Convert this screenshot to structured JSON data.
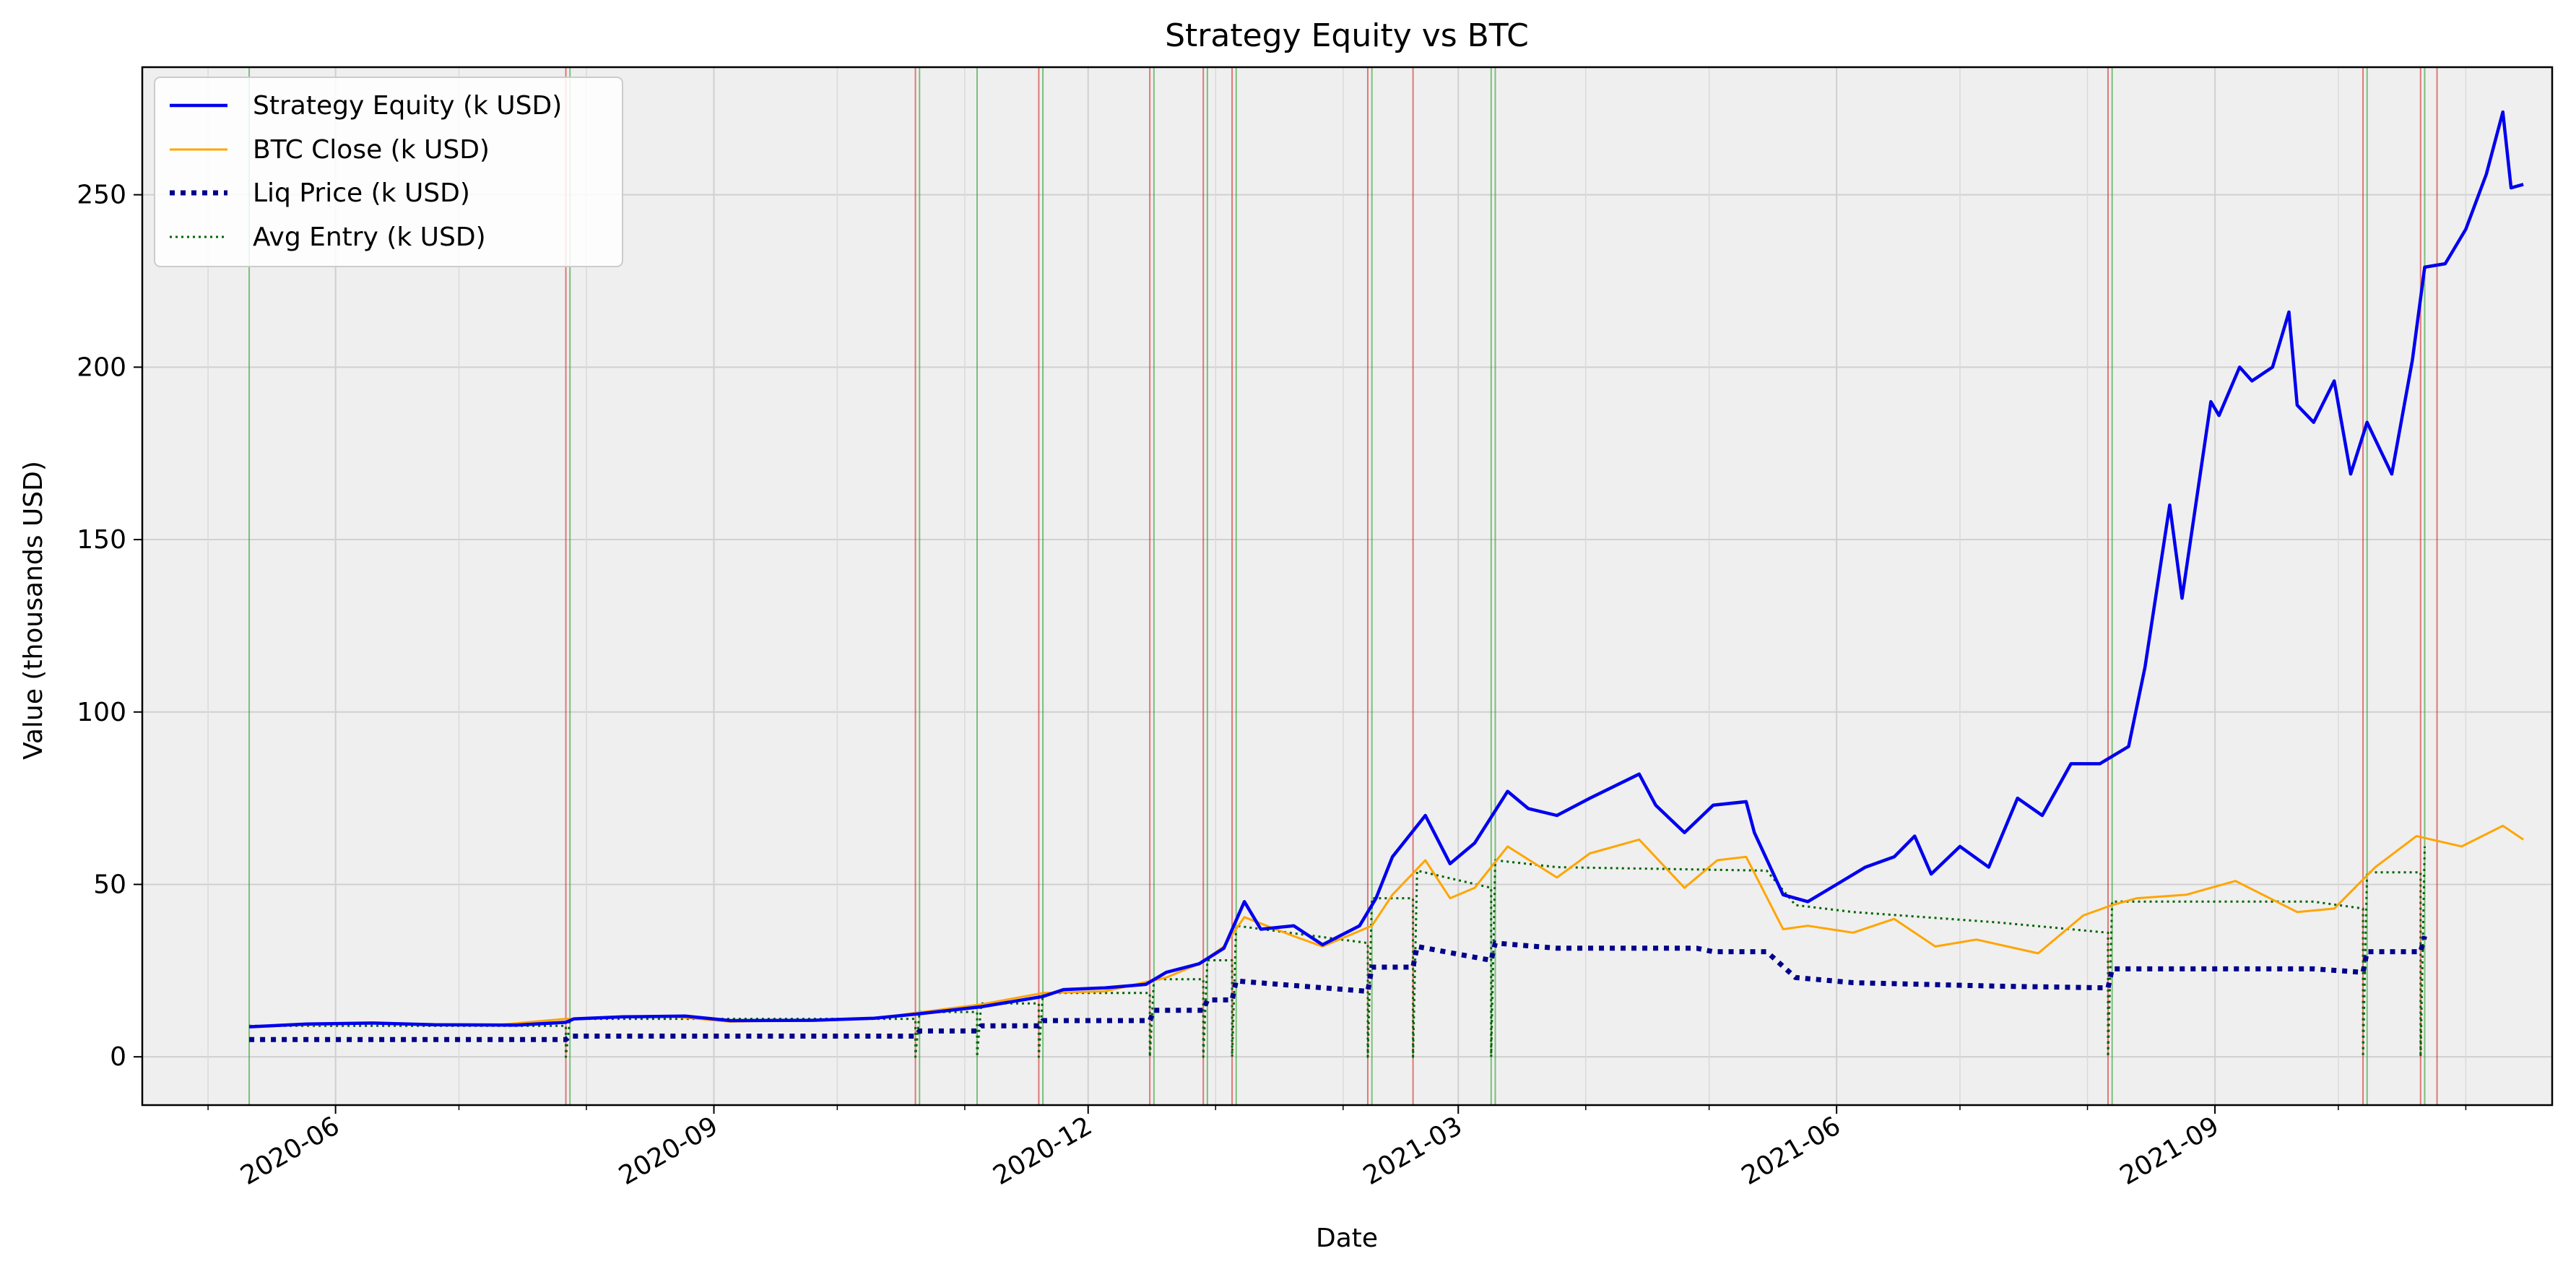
{
  "chart_data": {
    "type": "line",
    "title": "Strategy Equity vs BTC",
    "xlabel": "Date",
    "ylabel": "Value (thousands USD)",
    "x_range": [
      "2020-04-15",
      "2021-11-22"
    ],
    "ylim": [
      -14,
      287
    ],
    "grid": true,
    "legend_position": "top-left",
    "x_ticks": [
      {
        "date": "2020-06-01",
        "label": "2020-06"
      },
      {
        "date": "2020-09-01",
        "label": "2020-09"
      },
      {
        "date": "2020-12-01",
        "label": "2020-12"
      },
      {
        "date": "2021-03-01",
        "label": "2021-03"
      },
      {
        "date": "2021-06-01",
        "label": "2021-06"
      },
      {
        "date": "2021-09-01",
        "label": "2021-09"
      }
    ],
    "x_minor_ticks": [
      "2020-05-01",
      "2020-07-01",
      "2020-08-01",
      "2020-10-01",
      "2020-11-01",
      "2021-01-01",
      "2021-02-01",
      "2021-04-01",
      "2021-05-01",
      "2021-07-01",
      "2021-08-01",
      "2021-10-01",
      "2021-11-01"
    ],
    "y_ticks": [
      0,
      50,
      100,
      150,
      200,
      250
    ],
    "series": [
      {
        "name": "Strategy Equity (k USD)",
        "color": "#0000ee",
        "style": "solid",
        "width": 4.5,
        "points": [
          [
            "2020-05-11",
            8.7
          ],
          [
            "2020-05-25",
            9.5
          ],
          [
            "2020-06-10",
            9.8
          ],
          [
            "2020-06-25",
            9.3
          ],
          [
            "2020-07-15",
            9.2
          ],
          [
            "2020-07-27",
            10.0
          ],
          [
            "2020-07-29",
            11.0
          ],
          [
            "2020-08-10",
            11.6
          ],
          [
            "2020-08-25",
            11.8
          ],
          [
            "2020-09-05",
            10.5
          ],
          [
            "2020-09-25",
            10.6
          ],
          [
            "2020-10-10",
            11.2
          ],
          [
            "2020-10-21",
            12.5
          ],
          [
            "2020-11-05",
            14.5
          ],
          [
            "2020-11-20",
            17.5
          ],
          [
            "2020-11-25",
            19.5
          ],
          [
            "2020-12-05",
            20.0
          ],
          [
            "2020-12-15",
            21.0
          ],
          [
            "2020-12-20",
            24.5
          ],
          [
            "2020-12-28",
            27.0
          ],
          [
            "2021-01-03",
            31.5
          ],
          [
            "2021-01-08",
            45.0
          ],
          [
            "2021-01-12",
            37.0
          ],
          [
            "2021-01-20",
            38.0
          ],
          [
            "2021-01-27",
            32.5
          ],
          [
            "2021-02-05",
            38.0
          ],
          [
            "2021-02-09",
            46.0
          ],
          [
            "2021-02-13",
            58.0
          ],
          [
            "2021-02-21",
            70.0
          ],
          [
            "2021-02-27",
            56.0
          ],
          [
            "2021-03-05",
            62.0
          ],
          [
            "2021-03-13",
            77.0
          ],
          [
            "2021-03-18",
            72.0
          ],
          [
            "2021-03-25",
            70.0
          ],
          [
            "2021-04-02",
            75.0
          ],
          [
            "2021-04-14",
            82.0
          ],
          [
            "2021-04-18",
            73.0
          ],
          [
            "2021-04-25",
            65.0
          ],
          [
            "2021-05-02",
            73.0
          ],
          [
            "2021-05-10",
            74.0
          ],
          [
            "2021-05-12",
            65.0
          ],
          [
            "2021-05-19",
            47.0
          ],
          [
            "2021-05-25",
            45.0
          ],
          [
            "2021-06-01",
            50.0
          ],
          [
            "2021-06-08",
            55.0
          ],
          [
            "2021-06-15",
            58.0
          ],
          [
            "2021-06-20",
            64.0
          ],
          [
            "2021-06-24",
            53.0
          ],
          [
            "2021-07-01",
            61.0
          ],
          [
            "2021-07-08",
            55.0
          ],
          [
            "2021-07-15",
            75.0
          ],
          [
            "2021-07-21",
            70.0
          ],
          [
            "2021-07-28",
            85.0
          ],
          [
            "2021-08-04",
            85.0
          ],
          [
            "2021-08-11",
            90.0
          ],
          [
            "2021-08-15",
            113.0
          ],
          [
            "2021-08-21",
            160.0
          ],
          [
            "2021-08-24",
            133.0
          ],
          [
            "2021-08-31",
            190.0
          ],
          [
            "2021-09-02",
            186.0
          ],
          [
            "2021-09-07",
            200.0
          ],
          [
            "2021-09-10",
            196.0
          ],
          [
            "2021-09-15",
            200.0
          ],
          [
            "2021-09-19",
            216.0
          ],
          [
            "2021-09-21",
            189.0
          ],
          [
            "2021-09-25",
            184.0
          ],
          [
            "2021-09-30",
            196.0
          ],
          [
            "2021-10-04",
            169.0
          ],
          [
            "2021-10-08",
            184.0
          ],
          [
            "2021-10-14",
            169.0
          ],
          [
            "2021-10-19",
            202.0
          ],
          [
            "2021-10-22",
            229.0
          ],
          [
            "2021-10-27",
            230.0
          ],
          [
            "2021-11-01",
            240.0
          ],
          [
            "2021-11-06",
            256.0
          ],
          [
            "2021-11-10",
            274.0
          ],
          [
            "2021-11-12",
            252.0
          ],
          [
            "2021-11-15",
            253.0
          ]
        ]
      },
      {
        "name": "BTC Close (k USD)",
        "color": "#ffa500",
        "style": "solid",
        "width": 3,
        "points": [
          [
            "2020-05-11",
            8.9
          ],
          [
            "2020-06-10",
            9.7
          ],
          [
            "2020-07-10",
            9.2
          ],
          [
            "2020-07-27",
            11.0
          ],
          [
            "2020-08-20",
            11.9
          ],
          [
            "2020-09-05",
            10.2
          ],
          [
            "2020-10-10",
            11.1
          ],
          [
            "2020-10-21",
            12.9
          ],
          [
            "2020-11-05",
            15.2
          ],
          [
            "2020-11-20",
            18.5
          ],
          [
            "2020-12-05",
            19.0
          ],
          [
            "2020-12-20",
            23.0
          ],
          [
            "2020-12-28",
            27.0
          ],
          [
            "2021-01-03",
            32.0
          ],
          [
            "2021-01-08",
            40.5
          ],
          [
            "2021-01-20",
            35.0
          ],
          [
            "2021-01-27",
            32.0
          ],
          [
            "2021-02-08",
            38.0
          ],
          [
            "2021-02-13",
            47.0
          ],
          [
            "2021-02-21",
            57.0
          ],
          [
            "2021-02-27",
            46.0
          ],
          [
            "2021-03-05",
            49.0
          ],
          [
            "2021-03-13",
            61.0
          ],
          [
            "2021-03-25",
            52.0
          ],
          [
            "2021-04-02",
            59.0
          ],
          [
            "2021-04-14",
            63.0
          ],
          [
            "2021-04-25",
            49.0
          ],
          [
            "2021-05-03",
            57.0
          ],
          [
            "2021-05-10",
            58.0
          ],
          [
            "2021-05-19",
            37.0
          ],
          [
            "2021-05-25",
            38.0
          ],
          [
            "2021-06-05",
            36.0
          ],
          [
            "2021-06-15",
            40.0
          ],
          [
            "2021-06-25",
            32.0
          ],
          [
            "2021-07-05",
            34.0
          ],
          [
            "2021-07-20",
            30.0
          ],
          [
            "2021-07-31",
            41.0
          ],
          [
            "2021-08-07",
            44.0
          ],
          [
            "2021-08-13",
            46.0
          ],
          [
            "2021-08-25",
            47.0
          ],
          [
            "2021-09-06",
            51.0
          ],
          [
            "2021-09-21",
            42.0
          ],
          [
            "2021-09-30",
            43.0
          ],
          [
            "2021-10-10",
            55.0
          ],
          [
            "2021-10-20",
            64.0
          ],
          [
            "2021-10-31",
            61.0
          ],
          [
            "2021-11-10",
            67.0
          ],
          [
            "2021-11-15",
            63.0
          ]
        ]
      },
      {
        "name": "Liq Price (k USD)",
        "color": "#00008b",
        "style": "dotted-bold",
        "width": 7,
        "points": [
          [
            "2020-05-11",
            5.0
          ],
          [
            "2020-07-27",
            5.0
          ],
          [
            "2020-07-28",
            6.0
          ],
          [
            "2020-10-20",
            6.0
          ],
          [
            "2020-10-21",
            7.5
          ],
          [
            "2020-11-04",
            7.5
          ],
          [
            "2020-11-05",
            9.0
          ],
          [
            "2020-11-19",
            9.0
          ],
          [
            "2020-11-20",
            10.5
          ],
          [
            "2020-12-16",
            10.5
          ],
          [
            "2020-12-17",
            13.5
          ],
          [
            "2020-12-29",
            13.5
          ],
          [
            "2020-12-30",
            16.5
          ],
          [
            "2021-01-05",
            16.5
          ],
          [
            "2021-01-06",
            22.0
          ],
          [
            "2021-02-07",
            19.0
          ],
          [
            "2021-02-08",
            26.0
          ],
          [
            "2021-02-18",
            26.0
          ],
          [
            "2021-02-19",
            32.0
          ],
          [
            "2021-03-09",
            28.0
          ],
          [
            "2021-03-10",
            33.0
          ],
          [
            "2021-03-25",
            31.5
          ],
          [
            "2021-04-28",
            31.5
          ],
          [
            "2021-05-02",
            30.5
          ],
          [
            "2021-05-15",
            30.5
          ],
          [
            "2021-05-22",
            23.0
          ],
          [
            "2021-06-05",
            21.5
          ],
          [
            "2021-07-10",
            20.5
          ],
          [
            "2021-08-06",
            20.0
          ],
          [
            "2021-08-07",
            25.5
          ],
          [
            "2021-09-25",
            25.5
          ],
          [
            "2021-10-07",
            24.5
          ],
          [
            "2021-10-08",
            30.5
          ],
          [
            "2021-10-21",
            30.5
          ],
          [
            "2021-10-22",
            35.0
          ]
        ]
      },
      {
        "name": "Avg Entry (k USD)",
        "color": "#006400",
        "style": "dotted-thin",
        "width": 3,
        "points": [
          [
            "2020-05-11",
            9.0
          ],
          [
            "2020-07-27",
            9.0
          ],
          [
            "2020-07-27",
            0.0
          ],
          [
            "2020-07-28",
            11.0
          ],
          [
            "2020-10-20",
            11.0
          ],
          [
            "2020-10-20",
            0.0
          ],
          [
            "2020-10-21",
            13.0
          ],
          [
            "2020-11-04",
            13.0
          ],
          [
            "2020-11-04",
            0.0
          ],
          [
            "2020-11-05",
            15.5
          ],
          [
            "2020-11-19",
            15.5
          ],
          [
            "2020-11-19",
            0.0
          ],
          [
            "2020-11-20",
            18.5
          ],
          [
            "2020-12-16",
            18.5
          ],
          [
            "2020-12-16",
            0.0
          ],
          [
            "2020-12-17",
            22.5
          ],
          [
            "2020-12-29",
            22.5
          ],
          [
            "2020-12-29",
            0.0
          ],
          [
            "2020-12-30",
            28.0
          ],
          [
            "2021-01-05",
            28.0
          ],
          [
            "2021-01-05",
            0.0
          ],
          [
            "2021-01-06",
            38.0
          ],
          [
            "2021-02-07",
            33.0
          ],
          [
            "2021-02-07",
            0.0
          ],
          [
            "2021-02-08",
            46.0
          ],
          [
            "2021-02-18",
            46.0
          ],
          [
            "2021-02-18",
            0.0
          ],
          [
            "2021-02-19",
            54.0
          ],
          [
            "2021-03-09",
            49.0
          ],
          [
            "2021-03-09",
            0.0
          ],
          [
            "2021-03-10",
            57.0
          ],
          [
            "2021-03-25",
            55.0
          ],
          [
            "2021-05-15",
            54.0
          ],
          [
            "2021-05-22",
            44.0
          ],
          [
            "2021-06-05",
            42.0
          ],
          [
            "2021-07-10",
            39.0
          ],
          [
            "2021-08-06",
            36.0
          ],
          [
            "2021-08-06",
            0.0
          ],
          [
            "2021-08-07",
            45.0
          ],
          [
            "2021-09-25",
            45.0
          ],
          [
            "2021-10-07",
            43.0
          ],
          [
            "2021-10-07",
            0.0
          ],
          [
            "2021-10-08",
            53.5
          ],
          [
            "2021-10-21",
            53.5
          ],
          [
            "2021-10-21",
            0.0
          ],
          [
            "2021-10-22",
            61.0
          ]
        ]
      }
    ],
    "event_lines": [
      {
        "date": "2020-05-11",
        "color": "#2ca02c"
      },
      {
        "date": "2020-07-27",
        "color": "#d62728"
      },
      {
        "date": "2020-07-28",
        "color": "#2ca02c"
      },
      {
        "date": "2020-10-20",
        "color": "#d62728"
      },
      {
        "date": "2020-10-21",
        "color": "#2ca02c"
      },
      {
        "date": "2020-11-04",
        "color": "#2ca02c"
      },
      {
        "date": "2020-11-19",
        "color": "#d62728"
      },
      {
        "date": "2020-11-20",
        "color": "#2ca02c"
      },
      {
        "date": "2020-12-16",
        "color": "#d62728"
      },
      {
        "date": "2020-12-17",
        "color": "#2ca02c"
      },
      {
        "date": "2020-12-29",
        "color": "#d62728"
      },
      {
        "date": "2020-12-30",
        "color": "#2ca02c"
      },
      {
        "date": "2021-01-05",
        "color": "#d62728"
      },
      {
        "date": "2021-01-06",
        "color": "#2ca02c"
      },
      {
        "date": "2021-02-07",
        "color": "#d62728"
      },
      {
        "date": "2021-02-08",
        "color": "#2ca02c"
      },
      {
        "date": "2021-02-18",
        "color": "#d62728"
      },
      {
        "date": "2021-03-09",
        "color": "#2ca02c"
      },
      {
        "date": "2021-03-10",
        "color": "#2ca02c"
      },
      {
        "date": "2021-08-06",
        "color": "#d62728"
      },
      {
        "date": "2021-08-07",
        "color": "#2ca02c"
      },
      {
        "date": "2021-10-07",
        "color": "#d62728"
      },
      {
        "date": "2021-10-08",
        "color": "#2ca02c"
      },
      {
        "date": "2021-10-21",
        "color": "#d62728"
      },
      {
        "date": "2021-10-22",
        "color": "#2ca02c"
      },
      {
        "date": "2021-10-25",
        "color": "#d62728"
      }
    ]
  }
}
